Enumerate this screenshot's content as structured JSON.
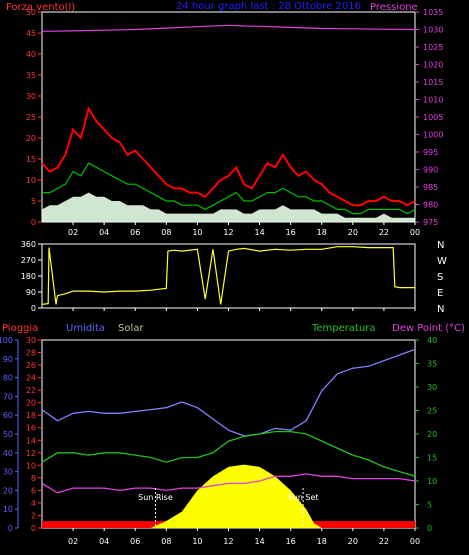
{
  "chart_data": [
    {
      "type": "line",
      "title": "24 hour graph last : 28 Ottobre 2016",
      "left_label": "Forza vento(l)",
      "right_label": "Pressione",
      "x_ticks": [
        "02",
        "04",
        "06",
        "08",
        "10",
        "12",
        "14",
        "16",
        "18",
        "20",
        "22",
        "00"
      ],
      "y_left_ticks": [
        "0",
        "5",
        "10",
        "15",
        "20",
        "25",
        "30",
        "35",
        "40",
        "45",
        "50"
      ],
      "y_left_range": [
        0,
        50
      ],
      "y_right_ticks": [
        "975",
        "980",
        "985",
        "990",
        "995",
        "1000",
        "1005",
        "1010",
        "1015",
        "1020",
        "1025",
        "1030",
        "1035"
      ],
      "y_right_range": [
        975,
        1035
      ],
      "colors": {
        "gust": "#ff0000",
        "wind": "#00c000",
        "avg": "#e8ffe8",
        "pressure": "#e040e0"
      },
      "series": [
        {
          "role": "gust",
          "x": [
            0,
            0.5,
            1,
            1.5,
            2,
            2.5,
            3,
            3.5,
            4,
            4.5,
            5,
            5.5,
            6,
            6.5,
            7,
            7.5,
            8,
            8.5,
            9,
            9.5,
            10,
            10.5,
            11,
            11.5,
            12,
            12.5,
            13,
            13.5,
            14,
            14.5,
            15,
            15.5,
            16,
            16.5,
            17,
            17.5,
            18,
            18.5,
            19,
            19.5,
            20,
            20.5,
            21,
            21.5,
            22,
            22.5,
            23,
            23.5,
            24
          ],
          "values": [
            14,
            12,
            13,
            16,
            22,
            20,
            27,
            24,
            22,
            20,
            19,
            16,
            17,
            15,
            13,
            11,
            9,
            8,
            8,
            7,
            7,
            6,
            8,
            10,
            11,
            13,
            9,
            8,
            11,
            14,
            13,
            16,
            13,
            11,
            12,
            10,
            9,
            7,
            6,
            5,
            4,
            4,
            5,
            5,
            6,
            5,
            5,
            4,
            5
          ]
        },
        {
          "role": "wind",
          "x": [
            0,
            0.5,
            1,
            1.5,
            2,
            2.5,
            3,
            3.5,
            4,
            4.5,
            5,
            5.5,
            6,
            6.5,
            7,
            7.5,
            8,
            8.5,
            9,
            9.5,
            10,
            10.5,
            11,
            11.5,
            12,
            12.5,
            13,
            13.5,
            14,
            14.5,
            15,
            15.5,
            16,
            16.5,
            17,
            17.5,
            18,
            18.5,
            19,
            19.5,
            20,
            20.5,
            21,
            21.5,
            22,
            22.5,
            23,
            23.5,
            24
          ],
          "values": [
            7,
            7,
            8,
            9,
            12,
            11,
            14,
            13,
            12,
            11,
            10,
            9,
            9,
            8,
            7,
            6,
            5,
            5,
            4,
            4,
            4,
            3,
            4,
            5,
            6,
            7,
            5,
            5,
            6,
            7,
            7,
            8,
            7,
            6,
            6,
            5,
            5,
            4,
            3,
            3,
            2,
            2,
            3,
            3,
            3,
            3,
            3,
            2,
            3
          ]
        },
        {
          "role": "avg",
          "x": [
            0,
            0.5,
            1,
            1.5,
            2,
            2.5,
            3,
            3.5,
            4,
            4.5,
            5,
            5.5,
            6,
            6.5,
            7,
            7.5,
            8,
            8.5,
            9,
            9.5,
            10,
            10.5,
            11,
            11.5,
            12,
            12.5,
            13,
            13.5,
            14,
            14.5,
            15,
            15.5,
            16,
            16.5,
            17,
            17.5,
            18,
            18.5,
            19,
            19.5,
            20,
            20.5,
            21,
            21.5,
            22,
            22.5,
            23,
            23.5,
            24
          ],
          "values": [
            3,
            4,
            4,
            5,
            6,
            6,
            7,
            6,
            6,
            5,
            5,
            4,
            4,
            4,
            3,
            3,
            2,
            2,
            2,
            2,
            2,
            2,
            2,
            3,
            3,
            3,
            2,
            2,
            3,
            3,
            3,
            4,
            3,
            3,
            3,
            3,
            2,
            2,
            2,
            1,
            1,
            1,
            1,
            1,
            2,
            1,
            1,
            1,
            1
          ]
        },
        {
          "role": "pressure",
          "x": [
            0,
            2,
            4,
            6,
            8,
            10,
            12,
            13,
            14,
            16,
            18,
            20,
            22,
            24
          ],
          "values": [
            1029.5,
            1029.6,
            1029.8,
            1030.0,
            1030.4,
            1030.8,
            1031.2,
            1031.0,
            1030.9,
            1030.6,
            1030.3,
            1030.2,
            1030.1,
            1030.0
          ]
        }
      ]
    },
    {
      "type": "line",
      "x_ticks": [
        "02",
        "04",
        "06",
        "08",
        "10",
        "12",
        "14",
        "16",
        "18",
        "20",
        "22",
        "00"
      ],
      "y_ticks": [
        "0",
        "90",
        "180",
        "270",
        "360"
      ],
      "y_range": [
        0,
        360
      ],
      "compass": [
        "N",
        "W",
        "S",
        "E",
        "N"
      ],
      "colors": {
        "direction": "#ffff33"
      },
      "series": [
        {
          "role": "direction",
          "x": [
            0,
            0.4,
            0.45,
            0.9,
            1.0,
            1.5,
            2,
            3,
            4,
            5,
            6,
            7,
            8,
            8.1,
            8.5,
            9,
            10,
            10.5,
            11,
            11.5,
            12,
            12.5,
            13,
            14,
            15,
            16,
            17,
            18,
            19,
            20,
            21,
            22,
            22.6,
            22.7,
            23,
            24
          ],
          "values": [
            20,
            25,
            340,
            20,
            70,
            80,
            95,
            95,
            90,
            95,
            95,
            100,
            110,
            320,
            325,
            320,
            330,
            50,
            330,
            20,
            320,
            330,
            335,
            320,
            330,
            325,
            330,
            330,
            345,
            345,
            340,
            340,
            340,
            120,
            115,
            115
          ]
        }
      ]
    },
    {
      "type": "line",
      "labels": {
        "rain": "Pioggia",
        "humidity": "Umidita",
        "solar": "Solar",
        "temperature": "Temperatura",
        "dewpoint": "Dew Point (°C)"
      },
      "annotations": {
        "sunrise": "Sun Rise",
        "sunset": "Sun Set"
      },
      "x_ticks": [
        "02",
        "04",
        "06",
        "08",
        "10",
        "12",
        "14",
        "16",
        "18",
        "20",
        "22",
        "00"
      ],
      "humidity_ticks": [
        "0",
        "10",
        "20",
        "30",
        "40",
        "50",
        "60",
        "70",
        "80",
        "90",
        "100"
      ],
      "humidity_range": [
        0,
        100
      ],
      "rain_ticks": [
        "0",
        "2",
        "4",
        "6",
        "8",
        "10",
        "12",
        "14",
        "16",
        "18",
        "20",
        "22",
        "24",
        "26",
        "28",
        "30"
      ],
      "rain_range": [
        0,
        30
      ],
      "temp_ticks": [
        "0",
        "5",
        "10",
        "15",
        "20",
        "25",
        "30",
        "35",
        "40"
      ],
      "temp_range": [
        0,
        40
      ],
      "colors": {
        "humidity": "#8080ff",
        "temperature": "#20c020",
        "dewpoint": "#e040e0",
        "solar": "#ffff00",
        "rain": "#ff0000"
      },
      "series": [
        {
          "role": "humidity",
          "x": [
            0,
            1,
            2,
            3,
            4,
            5,
            6,
            7,
            8,
            9,
            10,
            11,
            12,
            13,
            14,
            15,
            16,
            17,
            18,
            19,
            20,
            21,
            22,
            23,
            24
          ],
          "values": [
            63,
            57,
            61,
            62,
            61,
            61,
            62,
            63,
            64,
            67,
            64,
            58,
            52,
            49,
            50,
            53,
            52,
            57,
            73,
            82,
            85,
            86,
            89,
            92,
            95
          ]
        },
        {
          "role": "temperature",
          "x": [
            0,
            1,
            2,
            3,
            4,
            5,
            6,
            7,
            8,
            9,
            10,
            11,
            12,
            13,
            14,
            15,
            16,
            17,
            18,
            19,
            20,
            21,
            22,
            23,
            24
          ],
          "values": [
            14.0,
            16.0,
            16.0,
            15.5,
            16.0,
            16.0,
            15.5,
            15.0,
            14.0,
            15.0,
            15.0,
            16.0,
            18.5,
            19.5,
            20.0,
            20.5,
            20.5,
            20.0,
            18.5,
            17.0,
            15.5,
            14.5,
            13.0,
            12.0,
            11.0
          ]
        },
        {
          "role": "dewpoint",
          "x": [
            0,
            1,
            2,
            3,
            4,
            5,
            6,
            7,
            8,
            9,
            10,
            11,
            12,
            13,
            14,
            15,
            16,
            17,
            18,
            19,
            20,
            21,
            22,
            23,
            24
          ],
          "values": [
            9.5,
            7.5,
            8.5,
            8.5,
            8.5,
            8.0,
            8.5,
            8.5,
            8.0,
            8.5,
            8.5,
            9.0,
            9.5,
            9.5,
            10.0,
            11.0,
            11.0,
            11.5,
            11.0,
            11.0,
            10.5,
            10.5,
            10.5,
            10.5,
            10.0
          ]
        },
        {
          "role": "solar",
          "x": [
            7.0,
            8.0,
            9.0,
            10.0,
            11.0,
            12.0,
            13.0,
            14.0,
            15.0,
            16.0,
            17.0,
            17.5,
            18.0
          ],
          "values": [
            0,
            1.5,
            3.5,
            8,
            11,
            13,
            13.5,
            13,
            11,
            8,
            4,
            1,
            0
          ]
        },
        {
          "role": "rain",
          "x": [
            0,
            24
          ],
          "values": [
            1.1,
            1.1
          ]
        }
      ]
    }
  ]
}
